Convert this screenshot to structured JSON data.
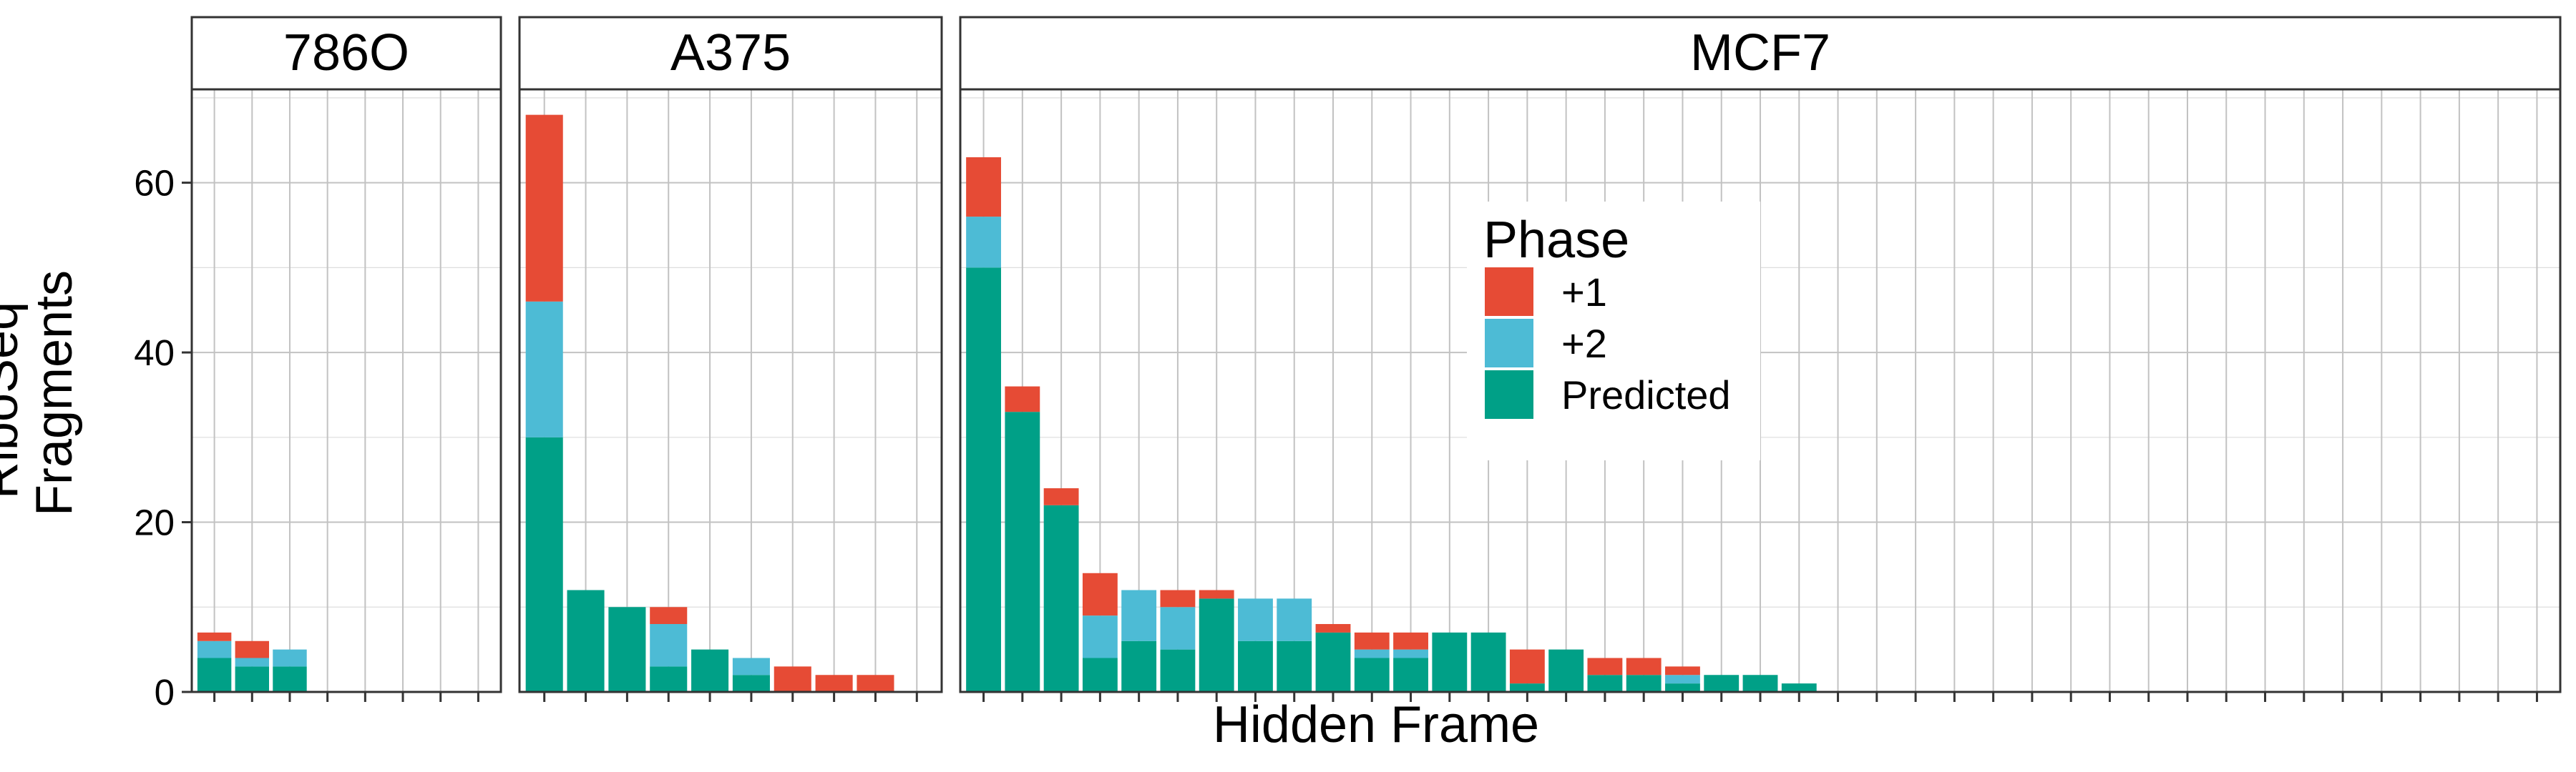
{
  "chart_data": {
    "type": "bar",
    "stacked": true,
    "facet_by": "cell_line",
    "xlabel": "Hidden Frame",
    "ylabel": [
      "RiboSeq",
      "Fragments"
    ],
    "ylim": [
      0,
      71
    ],
    "yticks": [
      0,
      20,
      40,
      60
    ],
    "x_ticks_labeled": false,
    "grid": true,
    "legend": {
      "title": "Phase",
      "placement": "inside-right",
      "entries": [
        {
          "label": "+1",
          "key": "plus1",
          "color": "#E64B35"
        },
        {
          "label": "+2",
          "key": "plus2",
          "color": "#4DBBD5"
        },
        {
          "label": "Predicted",
          "key": "predicted",
          "color": "#00A087"
        }
      ]
    },
    "panels": [
      {
        "title": "786O",
        "n_frames": 8,
        "bars": [
          {
            "predicted": 4,
            "plus2": 2,
            "plus1": 1
          },
          {
            "predicted": 3,
            "plus2": 1,
            "plus1": 2
          },
          {
            "predicted": 3,
            "plus2": 2,
            "plus1": 0
          }
        ]
      },
      {
        "title": "A375",
        "n_frames": 10,
        "bars": [
          {
            "predicted": 30,
            "plus2": 16,
            "plus1": 22
          },
          {
            "predicted": 12,
            "plus2": 0,
            "plus1": 0
          },
          {
            "predicted": 10,
            "plus2": 0,
            "plus1": 0
          },
          {
            "predicted": 3,
            "plus2": 5,
            "plus1": 2
          },
          {
            "predicted": 5,
            "plus2": 0,
            "plus1": 0
          },
          {
            "predicted": 2,
            "plus2": 2,
            "plus1": 0
          },
          {
            "predicted": 0,
            "plus2": 0,
            "plus1": 3
          },
          {
            "predicted": 0,
            "plus2": 0,
            "plus1": 2
          },
          {
            "predicted": 0,
            "plus2": 0,
            "plus1": 2
          }
        ]
      },
      {
        "title": "MCF7",
        "n_frames": 41,
        "bars": [
          {
            "predicted": 50,
            "plus2": 6,
            "plus1": 7
          },
          {
            "predicted": 33,
            "plus2": 0,
            "plus1": 3
          },
          {
            "predicted": 22,
            "plus2": 0,
            "plus1": 2
          },
          {
            "predicted": 4,
            "plus2": 5,
            "plus1": 5
          },
          {
            "predicted": 6,
            "plus2": 6,
            "plus1": 0
          },
          {
            "predicted": 5,
            "plus2": 5,
            "plus1": 2
          },
          {
            "predicted": 11,
            "plus2": 0,
            "plus1": 1
          },
          {
            "predicted": 6,
            "plus2": 5,
            "plus1": 0
          },
          {
            "predicted": 6,
            "plus2": 5,
            "plus1": 0
          },
          {
            "predicted": 7,
            "plus2": 0,
            "plus1": 1
          },
          {
            "predicted": 4,
            "plus2": 1,
            "plus1": 2
          },
          {
            "predicted": 4,
            "plus2": 1,
            "plus1": 2
          },
          {
            "predicted": 7,
            "plus2": 0,
            "plus1": 0
          },
          {
            "predicted": 7,
            "plus2": 0,
            "plus1": 0
          },
          {
            "predicted": 1,
            "plus2": 0,
            "plus1": 4
          },
          {
            "predicted": 5,
            "plus2": 0,
            "plus1": 0
          },
          {
            "predicted": 2,
            "plus2": 0,
            "plus1": 2
          },
          {
            "predicted": 2,
            "plus2": 0,
            "plus1": 2
          },
          {
            "predicted": 1,
            "plus2": 1,
            "plus1": 1
          },
          {
            "predicted": 2,
            "plus2": 0,
            "plus1": 0
          },
          {
            "predicted": 2,
            "plus2": 0,
            "plus1": 0
          },
          {
            "predicted": 1,
            "plus2": 0,
            "plus1": 0
          }
        ]
      }
    ]
  }
}
